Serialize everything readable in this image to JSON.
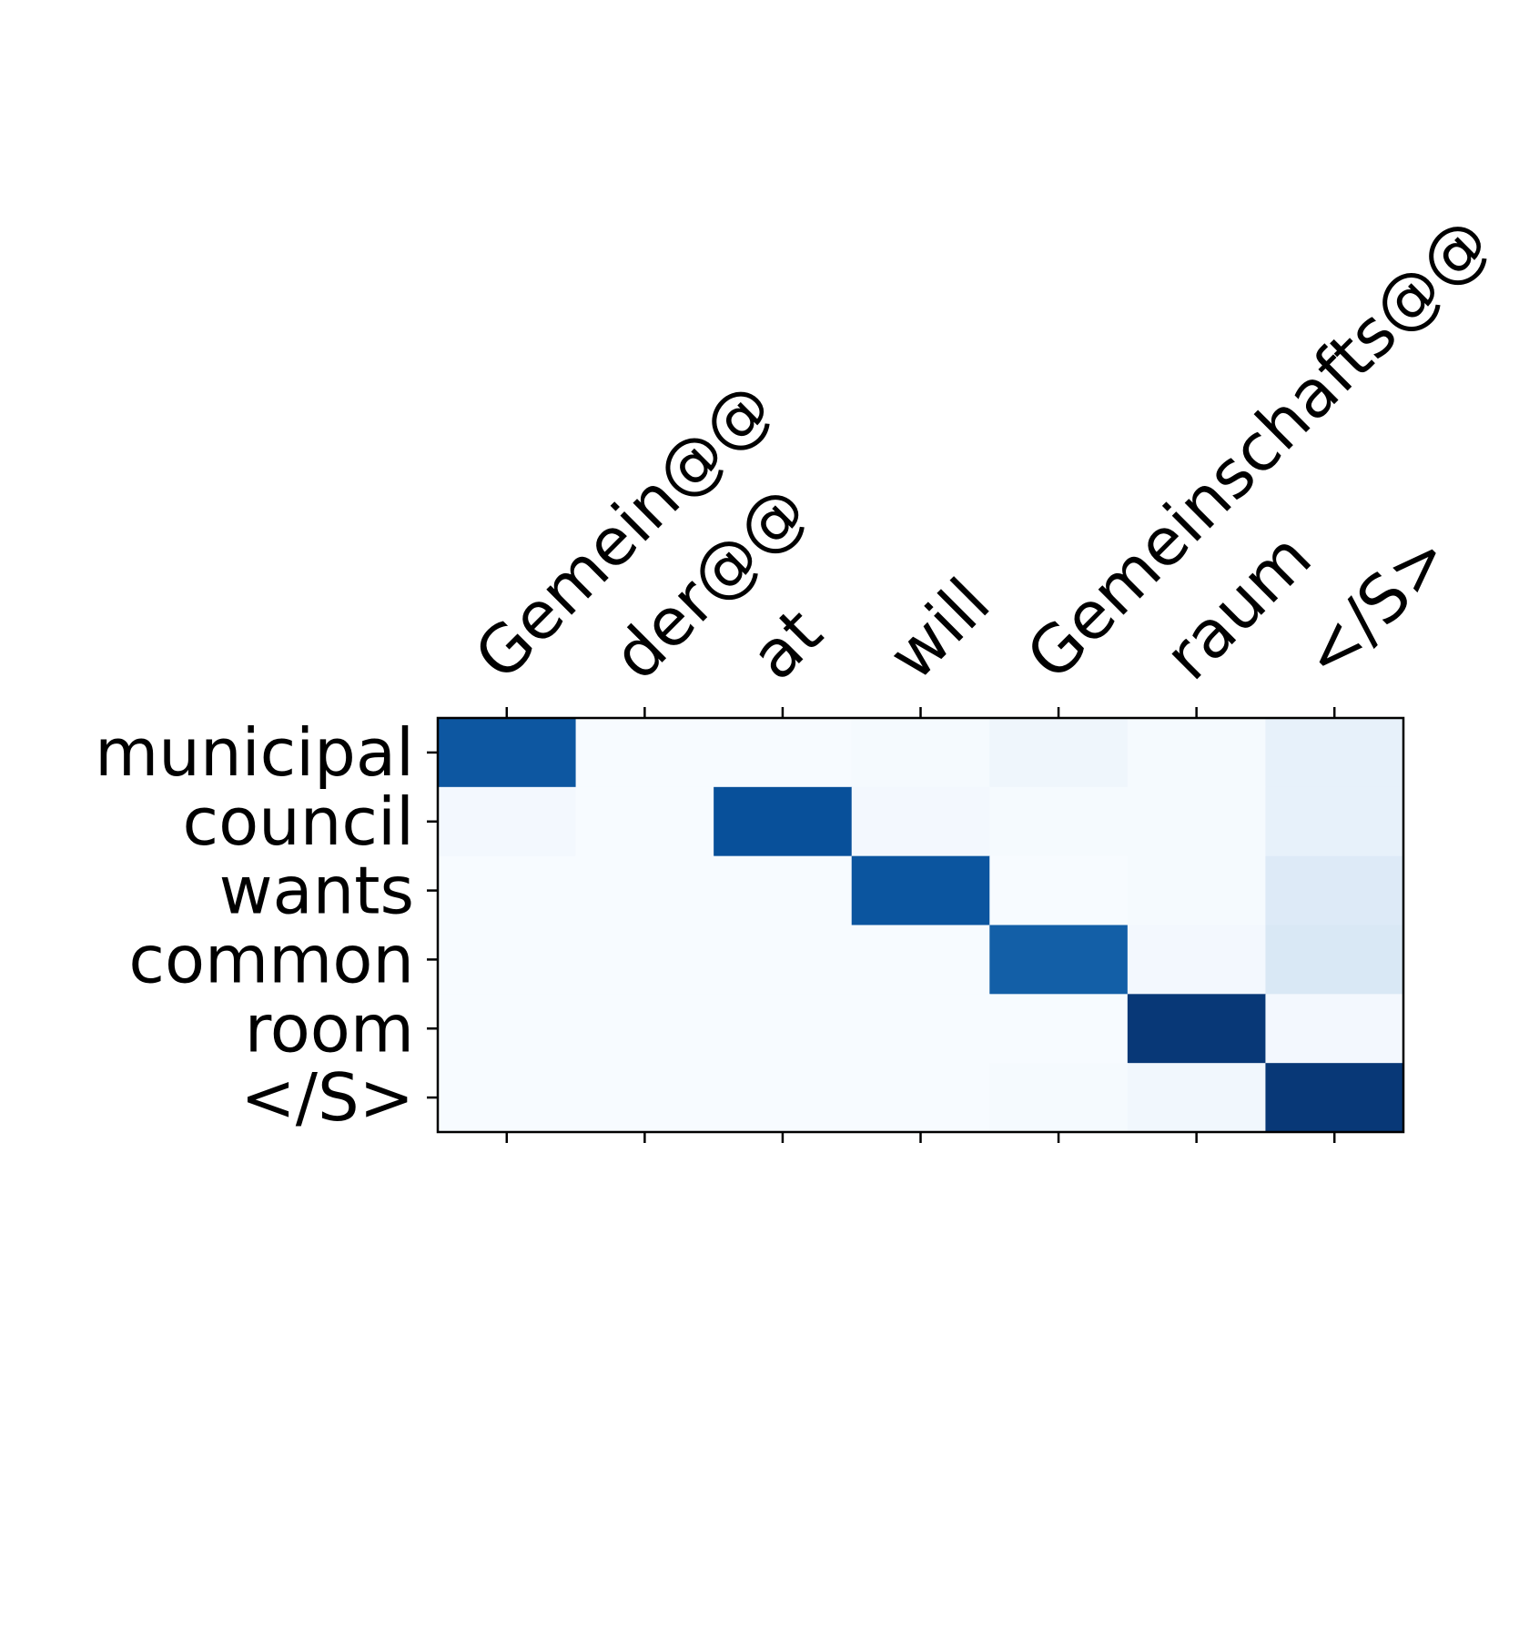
{
  "chart_data": {
    "type": "heatmap",
    "colormap": "Blues",
    "x_tick_position": "top",
    "x_tick_rotation": 45,
    "grid": false,
    "x_labels": [
      "Gemein@@",
      "der@@",
      "at",
      "will",
      "Gemeinschafts@@",
      "raum",
      "</S>"
    ],
    "y_labels": [
      "municipal",
      "council",
      "wants",
      "common",
      "room",
      "</S>"
    ],
    "values": [
      [
        0.85,
        0.0,
        0.0,
        0.01,
        0.04,
        0.01,
        0.08
      ],
      [
        0.02,
        0.0,
        0.88,
        0.02,
        0.01,
        0.01,
        0.08
      ],
      [
        0.0,
        0.0,
        0.0,
        0.86,
        0.0,
        0.01,
        0.13
      ],
      [
        0.0,
        0.0,
        0.0,
        0.0,
        0.82,
        0.02,
        0.15
      ],
      [
        0.0,
        0.0,
        0.0,
        0.0,
        0.0,
        0.97,
        0.02
      ],
      [
        0.0,
        0.0,
        0.0,
        0.0,
        0.01,
        0.03,
        0.97
      ]
    ],
    "value_range": [
      0,
      1
    ]
  }
}
